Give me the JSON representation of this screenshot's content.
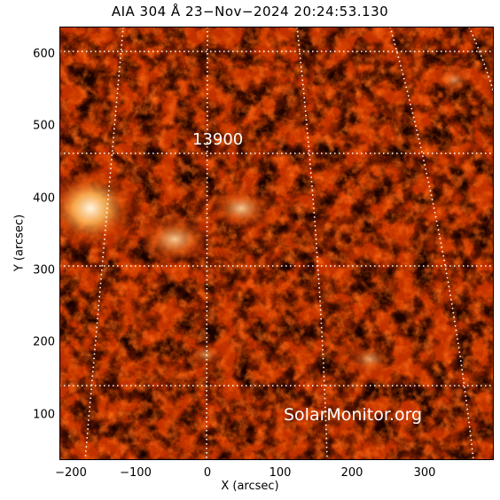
{
  "title": "AIA 304 Å 23−Nov−2024 20:24:53.130",
  "axes": {
    "x_title": "X (arcsec)",
    "y_title": "Y (arcsec)",
    "x_ticks": [
      "−200",
      "−100",
      "0",
      "100",
      "200",
      "300"
    ],
    "y_ticks": [
      "600",
      "500",
      "400",
      "300",
      "200",
      "100"
    ]
  },
  "image": {
    "subject": "solar chromosphere in AIA 304 Å",
    "colormap": "black-red-orange-white",
    "grid_style": "white dotted heliographic grid"
  },
  "region_label": "13900",
  "watermark": "SolarMonitor.org",
  "colors": {
    "background": "#000000",
    "plasma_dark": "#3a0400",
    "plasma_mid": "#b52a00",
    "plasma_bright": "#ffb35a",
    "grid": "#ffffff"
  }
}
